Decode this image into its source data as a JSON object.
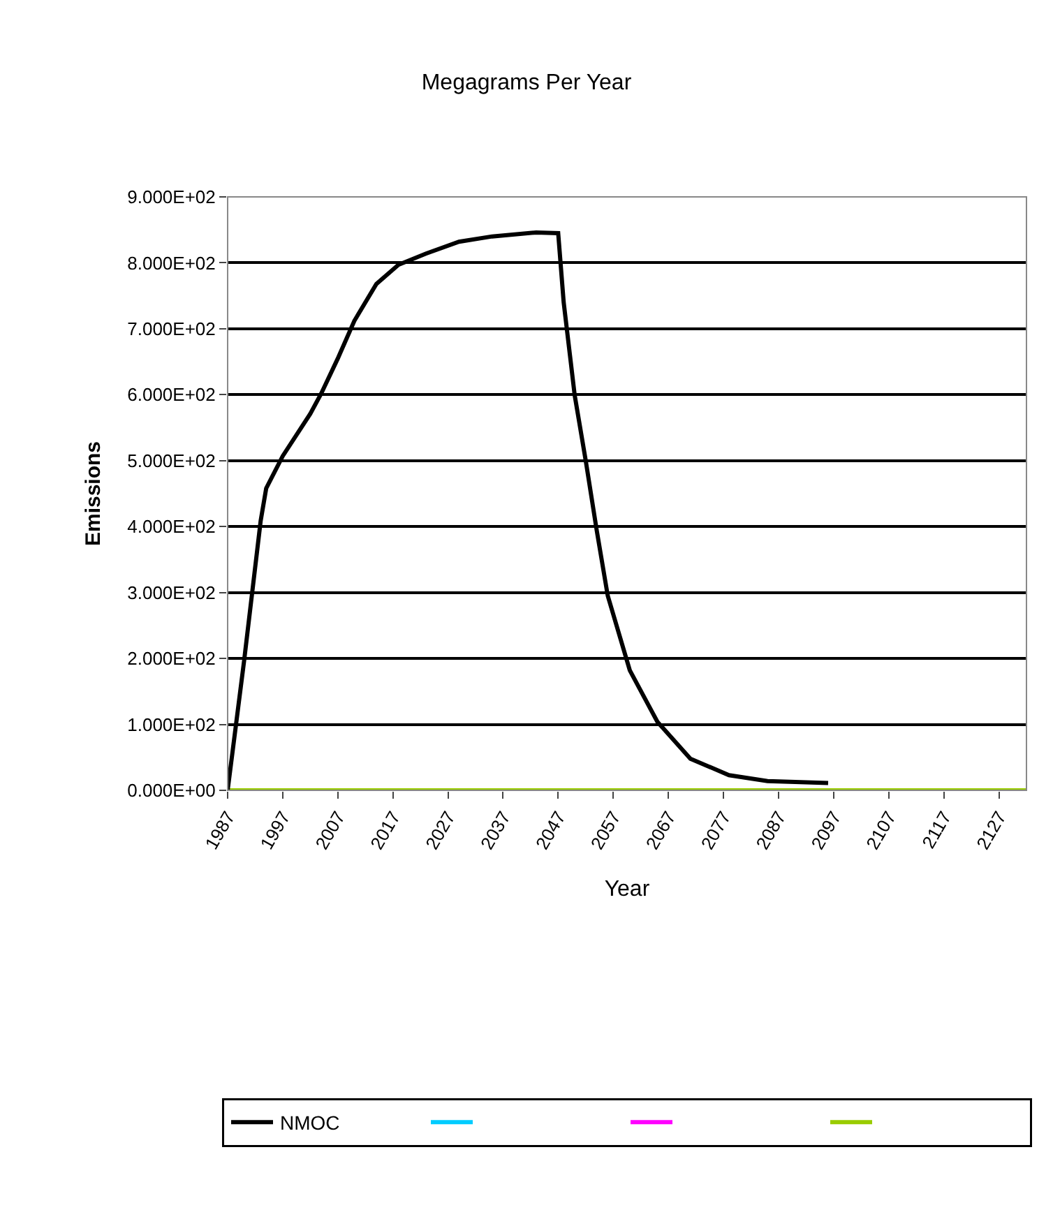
{
  "chart_data": {
    "type": "line",
    "title": "Megagrams Per Year",
    "xlabel": "Year",
    "ylabel": "Emissions",
    "xlim": [
      1987,
      2132
    ],
    "xticks": [
      1987,
      1997,
      2007,
      2017,
      2027,
      2037,
      2047,
      2057,
      2067,
      2077,
      2087,
      2097,
      2107,
      2117,
      2127
    ],
    "ylim": [
      0,
      900
    ],
    "yticks": [
      {
        "value": 0,
        "label": "0.000E+00"
      },
      {
        "value": 100,
        "label": "1.000E+02"
      },
      {
        "value": 200,
        "label": "2.000E+02"
      },
      {
        "value": 300,
        "label": "3.000E+02"
      },
      {
        "value": 400,
        "label": "4.000E+02"
      },
      {
        "value": 500,
        "label": "5.000E+02"
      },
      {
        "value": 600,
        "label": "6.000E+02"
      },
      {
        "value": 700,
        "label": "7.000E+02"
      },
      {
        "value": 800,
        "label": "8.000E+02"
      },
      {
        "value": 900,
        "label": "9.000E+02"
      }
    ],
    "grid": "y",
    "legend": "bottom",
    "marker": "none",
    "line_style": "solid",
    "series": [
      {
        "name": "NMOC",
        "color": "#000000",
        "x": [
          1987,
          1990,
          1993,
          1994,
          1997,
          2002,
          2004,
          2007,
          2010,
          2014,
          2018,
          2023,
          2029,
          2035,
          2043,
          2047,
          2048,
          2050,
          2052,
          2054,
          2056,
          2060,
          2065,
          2071,
          2078,
          2085,
          2096
        ],
        "values": [
          0,
          197,
          409,
          458,
          507,
          571,
          602,
          655,
          712,
          768,
          797,
          814,
          832,
          840,
          846,
          845,
          740,
          599,
          500,
          394,
          295,
          182,
          104,
          48,
          23,
          14,
          11
        ]
      },
      {
        "color": "#00ccff"
      },
      {
        "color": "#ff00ff"
      },
      {
        "color": "#99cc00",
        "x": [
          1987,
          2132
        ],
        "values": [
          0,
          0
        ]
      }
    ]
  }
}
